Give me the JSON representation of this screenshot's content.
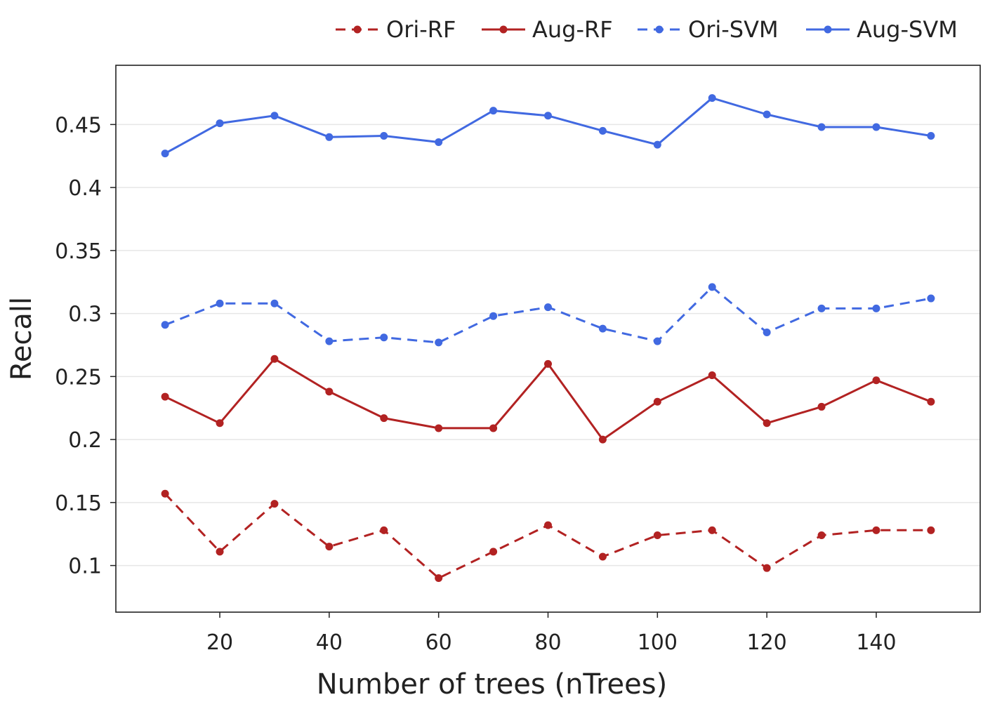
{
  "chart_data": {
    "type": "line",
    "title": "",
    "xlabel": "Number of trees (nTrees)",
    "ylabel": "Recall",
    "x": [
      10,
      20,
      30,
      40,
      50,
      60,
      70,
      80,
      90,
      100,
      110,
      120,
      130,
      140,
      150
    ],
    "xlim": [
      1,
      159
    ],
    "ylim": [
      0.063,
      0.497
    ],
    "xticks": [
      20,
      40,
      60,
      80,
      100,
      120,
      140
    ],
    "xtick_labels": [
      "20",
      "40",
      "60",
      "80",
      "100",
      "120",
      "140"
    ],
    "yticks": [
      0.1,
      0.15,
      0.2,
      0.25,
      0.3,
      0.35,
      0.4,
      0.45
    ],
    "ytick_labels": [
      "0.1",
      "0.15",
      "0.2",
      "0.25",
      "0.3",
      "0.35",
      "0.4",
      "0.45"
    ],
    "grid": "horizontal",
    "legend_position": "top-right",
    "series": [
      {
        "name": "Ori-RF",
        "color": "#b22222",
        "dash": "dashed",
        "values": [
          0.157,
          0.111,
          0.149,
          0.115,
          0.128,
          0.09,
          0.111,
          0.132,
          0.107,
          0.124,
          0.128,
          0.098,
          0.124,
          0.128,
          0.128
        ]
      },
      {
        "name": "Aug-RF",
        "color": "#b22222",
        "dash": "solid",
        "values": [
          0.234,
          0.213,
          0.264,
          0.238,
          0.217,
          0.209,
          0.209,
          0.26,
          0.2,
          0.23,
          0.251,
          0.213,
          0.226,
          0.247,
          0.23
        ]
      },
      {
        "name": "Ori-SVM",
        "color": "#4169e1",
        "dash": "dashed",
        "values": [
          0.291,
          0.308,
          0.308,
          0.278,
          0.281,
          0.277,
          0.298,
          0.305,
          0.288,
          0.278,
          0.321,
          0.285,
          0.304,
          0.304,
          0.312
        ]
      },
      {
        "name": "Aug-SVM",
        "color": "#4169e1",
        "dash": "solid",
        "values": [
          0.427,
          0.451,
          0.457,
          0.44,
          0.441,
          0.436,
          0.461,
          0.457,
          0.445,
          0.434,
          0.471,
          0.458,
          0.448,
          0.448,
          0.441
        ]
      }
    ]
  }
}
